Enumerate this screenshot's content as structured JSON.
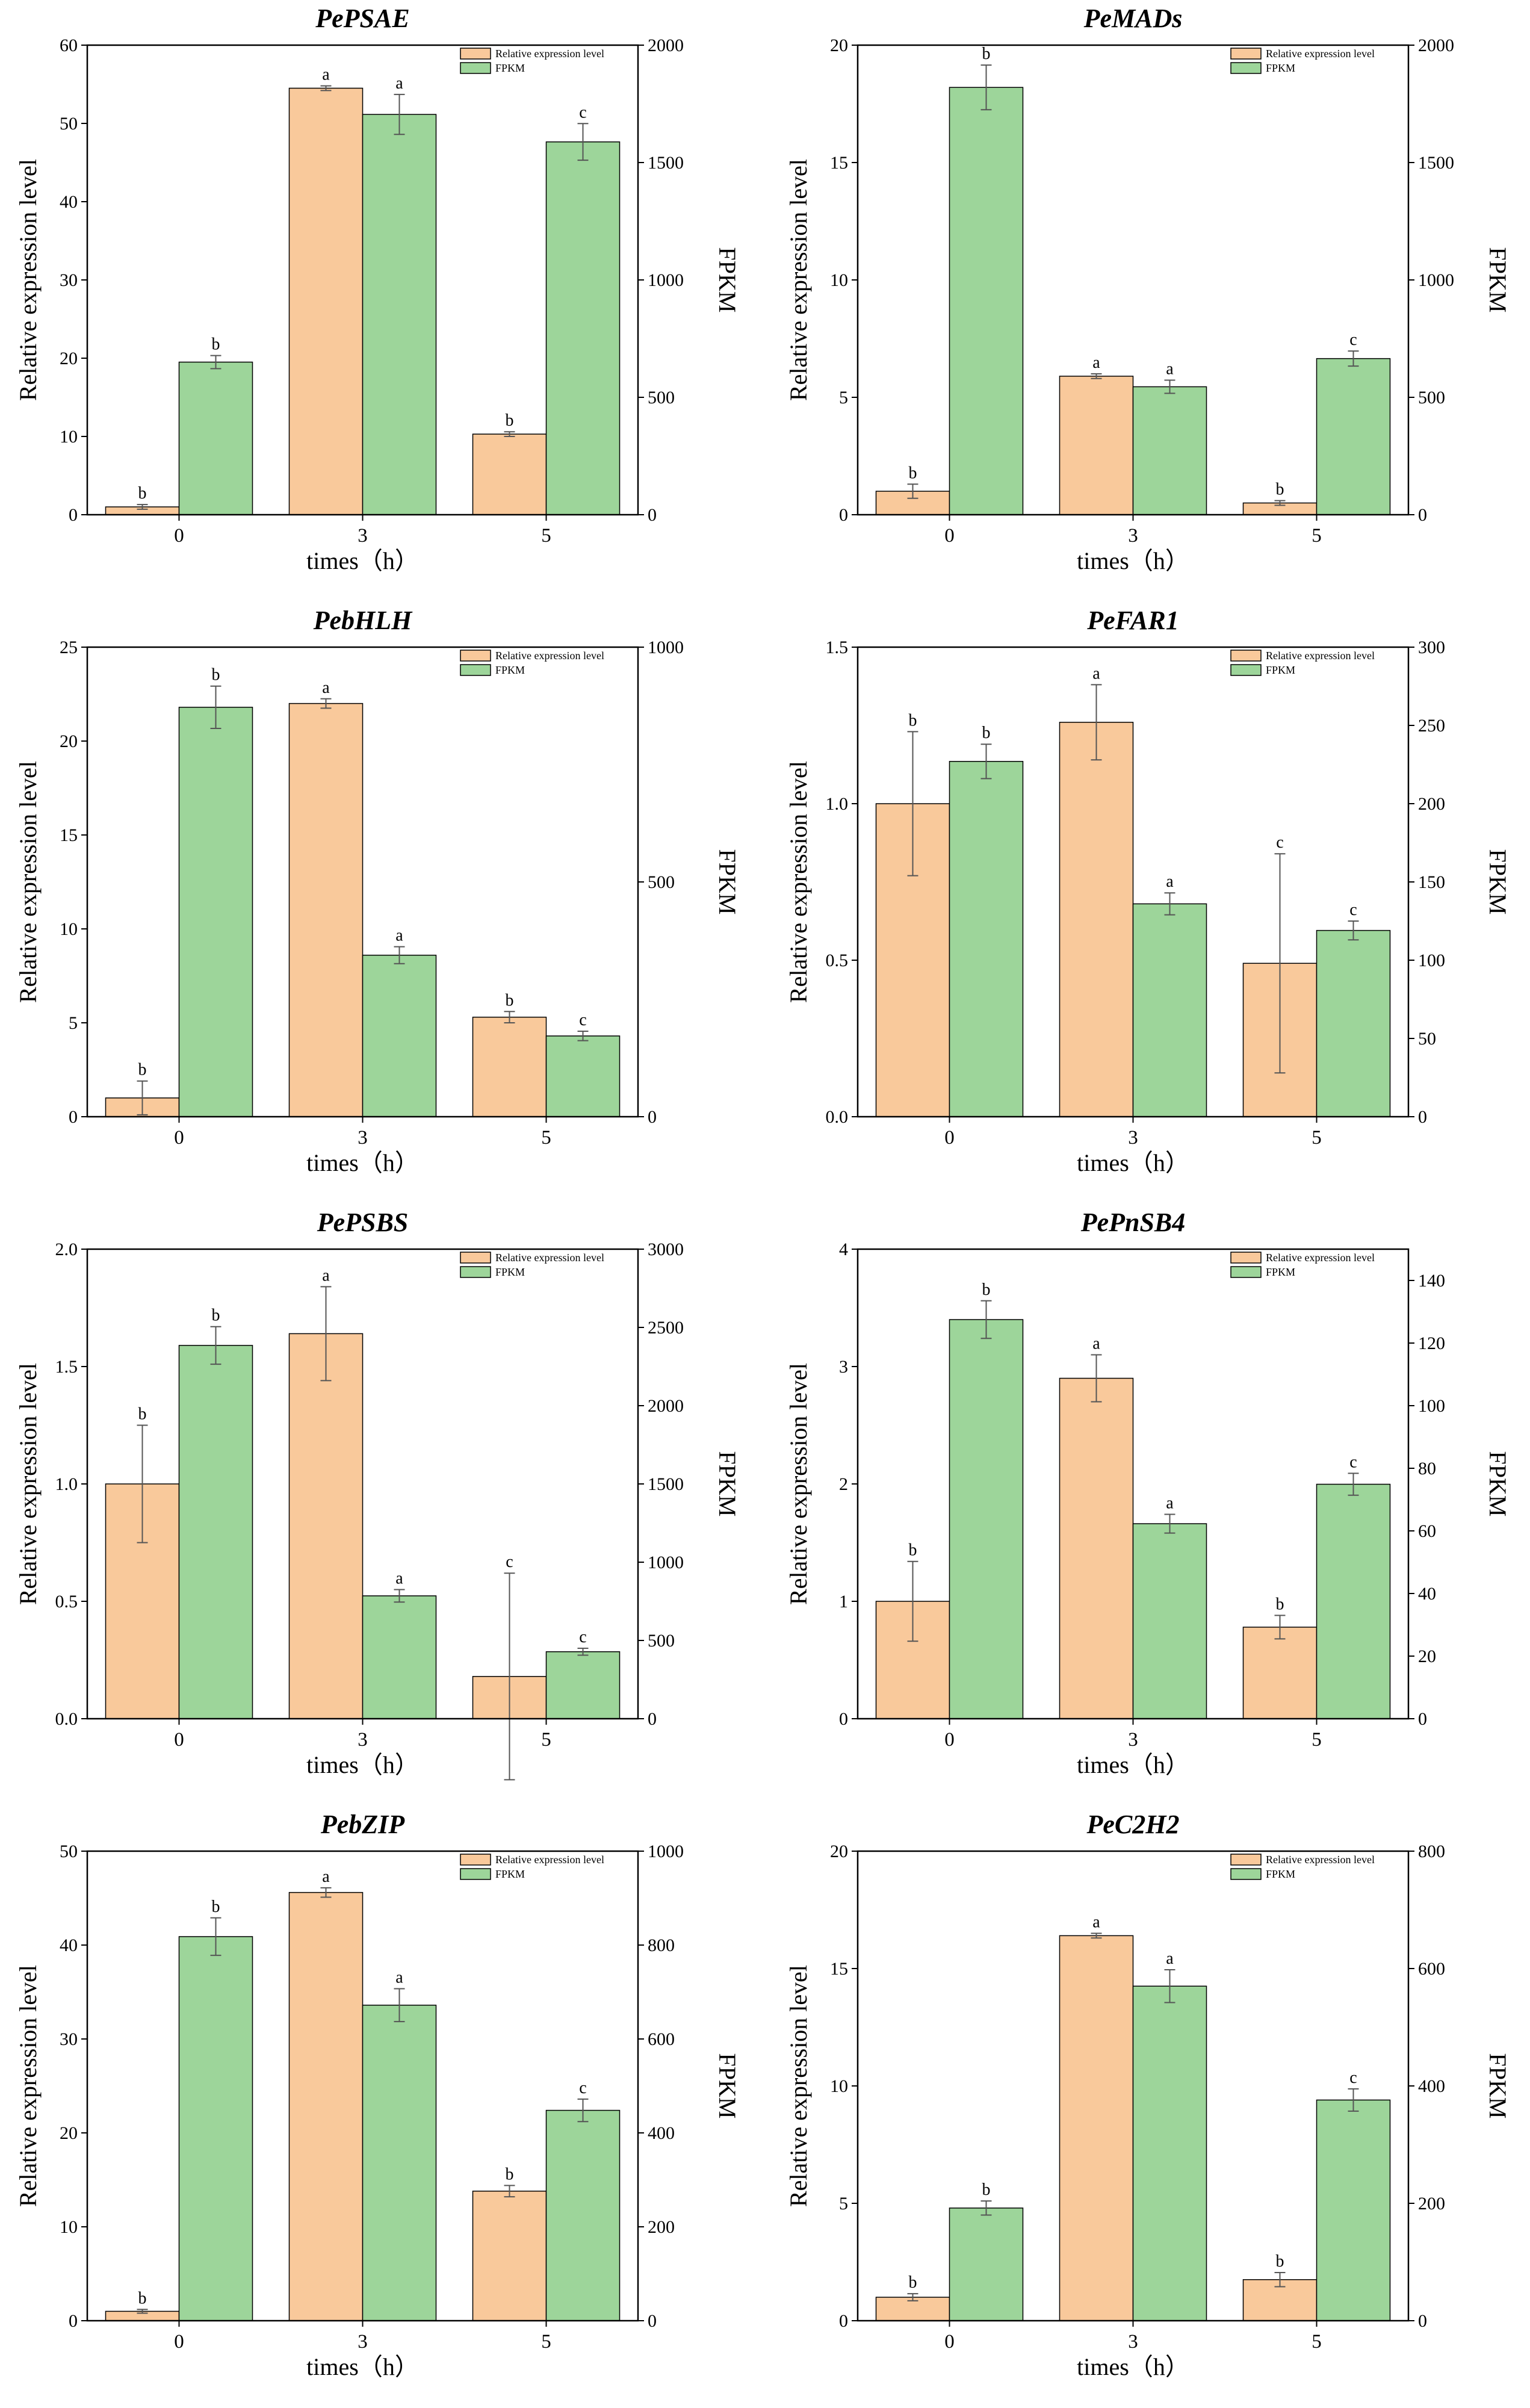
{
  "colors": {
    "relative": "#f9c99b",
    "fpkm": "#9dd59a",
    "stroke": "#000000",
    "error": "#555555"
  },
  "common": {
    "legend_relative": "Relative expression level",
    "legend_fpkm": "FPKM",
    "ylabel_left": "Relative expression level",
    "ylabel_right": "FPKM",
    "xlabel": "times（h）"
  },
  "chart_data": [
    {
      "type": "bar",
      "title": "PePSAE",
      "categories": [
        "0",
        "3",
        "5"
      ],
      "ylim_left": [
        0,
        60
      ],
      "yticks_left": [
        "0",
        "10",
        "20",
        "30",
        "40",
        "50",
        "60"
      ],
      "ylim_right": [
        0,
        2000
      ],
      "yticks_right": [
        "0",
        "500",
        "1000",
        "1500",
        "2000"
      ],
      "series": [
        {
          "name": "Relative expression level",
          "axis": "left",
          "values": [
            1.0,
            54.5,
            10.3
          ],
          "errors": [
            0.3,
            0.3,
            0.3
          ],
          "letters": [
            "b",
            "a",
            "b"
          ]
        },
        {
          "name": "FPKM",
          "axis": "right",
          "values": [
            650,
            1705,
            1588
          ],
          "errors": [
            28,
            85,
            78
          ],
          "letters": [
            "b",
            "a",
            "c"
          ]
        }
      ]
    },
    {
      "type": "bar",
      "title": "PeMADs",
      "categories": [
        "0",
        "3",
        "5"
      ],
      "ylim_left": [
        0,
        20
      ],
      "yticks_left": [
        "0",
        "5",
        "10",
        "15",
        "20"
      ],
      "ylim_right": [
        0,
        2000
      ],
      "yticks_right": [
        "0",
        "500",
        "1000",
        "1500",
        "2000"
      ],
      "series": [
        {
          "name": "Relative expression level",
          "axis": "left",
          "values": [
            1.0,
            5.9,
            0.5
          ],
          "errors": [
            0.3,
            0.1,
            0.1
          ],
          "letters": [
            "b",
            "a",
            "b"
          ]
        },
        {
          "name": "FPKM",
          "axis": "right",
          "values": [
            1820,
            545,
            665
          ],
          "errors": [
            95,
            28,
            32
          ],
          "letters": [
            "b",
            "a",
            "c"
          ]
        }
      ]
    },
    {
      "type": "bar",
      "title": "PebHLH",
      "categories": [
        "0",
        "3",
        "5"
      ],
      "ylim_left": [
        0,
        25
      ],
      "yticks_left": [
        "0",
        "5",
        "10",
        "15",
        "20",
        "25"
      ],
      "ylim_right": [
        0,
        1000
      ],
      "yticks_right": [
        "0",
        "500",
        "1000"
      ],
      "series": [
        {
          "name": "Relative expression level",
          "axis": "left",
          "values": [
            1.0,
            22.0,
            5.3
          ],
          "errors": [
            0.9,
            0.25,
            0.3
          ],
          "letters": [
            "b",
            "a",
            "b"
          ]
        },
        {
          "name": "FPKM",
          "axis": "right",
          "values": [
            872,
            344,
            172
          ],
          "errors": [
            45,
            18,
            10
          ],
          "letters": [
            "b",
            "a",
            "c"
          ]
        }
      ]
    },
    {
      "type": "bar",
      "title": "PeFAR1",
      "categories": [
        "0",
        "3",
        "5"
      ],
      "ylim_left": [
        0,
        1.5
      ],
      "yticks_left": [
        "0.0",
        "0.5",
        "1.0",
        "1.5"
      ],
      "ylim_right": [
        0,
        300
      ],
      "yticks_right": [
        "0",
        "50",
        "100",
        "150",
        "200",
        "250",
        "300"
      ],
      "series": [
        {
          "name": "Relative expression level",
          "axis": "left",
          "values": [
            1.0,
            1.26,
            0.49
          ],
          "errors": [
            0.23,
            0.12,
            0.35
          ],
          "letters": [
            "b",
            "a",
            "c"
          ]
        },
        {
          "name": "FPKM",
          "axis": "right",
          "values": [
            227,
            136,
            119
          ],
          "errors": [
            11,
            7,
            6
          ],
          "letters": [
            "b",
            "a",
            "c"
          ]
        }
      ]
    },
    {
      "type": "bar",
      "title": "PePSBS",
      "categories": [
        "0",
        "3",
        "5"
      ],
      "ylim_left": [
        0,
        2.0
      ],
      "yticks_left": [
        "0.0",
        "0.5",
        "1.0",
        "1.5",
        "2.0"
      ],
      "ylim_right": [
        0,
        3000
      ],
      "yticks_right": [
        "0",
        "500",
        "1000",
        "1500",
        "2000",
        "2500",
        "3000"
      ],
      "series": [
        {
          "name": "Relative expression level",
          "axis": "left",
          "values": [
            1.0,
            1.64,
            0.18
          ],
          "errors": [
            0.25,
            0.2,
            0.44
          ],
          "letters": [
            "b",
            "a",
            "c"
          ]
        },
        {
          "name": "FPKM",
          "axis": "right",
          "values": [
            2385,
            785,
            428
          ],
          "errors": [
            120,
            40,
            22
          ],
          "letters": [
            "b",
            "a",
            "c"
          ]
        }
      ]
    },
    {
      "type": "bar",
      "title": "PePnSB4",
      "categories": [
        "0",
        "3",
        "5"
      ],
      "ylim_left": [
        0,
        4
      ],
      "yticks_left": [
        "0",
        "1",
        "2",
        "3",
        "4"
      ],
      "ylim_right": [
        0,
        150
      ],
      "yticks_right": [
        "0",
        "20",
        "40",
        "60",
        "80",
        "100",
        "120",
        "140"
      ],
      "series": [
        {
          "name": "Relative expression level",
          "axis": "left",
          "values": [
            1.0,
            2.9,
            0.78
          ],
          "errors": [
            0.34,
            0.2,
            0.1
          ],
          "letters": [
            "b",
            "a",
            "b"
          ]
        },
        {
          "name": "FPKM",
          "axis": "right",
          "values": [
            127.5,
            62.3,
            74.9
          ],
          "errors": [
            6,
            3,
            3.5
          ],
          "letters": [
            "b",
            "a",
            "c"
          ]
        }
      ]
    },
    {
      "type": "bar",
      "title": "PebZIP",
      "categories": [
        "0",
        "3",
        "5"
      ],
      "ylim_left": [
        0,
        50
      ],
      "yticks_left": [
        "0",
        "10",
        "20",
        "30",
        "40",
        "50"
      ],
      "ylim_right": [
        0,
        1000
      ],
      "yticks_right": [
        "0",
        "200",
        "400",
        "600",
        "800",
        "1000"
      ],
      "series": [
        {
          "name": "Relative expression level",
          "axis": "left",
          "values": [
            1.0,
            45.6,
            13.8
          ],
          "errors": [
            0.2,
            0.5,
            0.6
          ],
          "letters": [
            "b",
            "a",
            "b"
          ]
        },
        {
          "name": "FPKM",
          "axis": "right",
          "values": [
            818,
            672,
            448
          ],
          "errors": [
            40,
            35,
            24
          ],
          "letters": [
            "b",
            "a",
            "c"
          ]
        }
      ]
    },
    {
      "type": "bar",
      "title": "PeC2H2",
      "categories": [
        "0",
        "3",
        "5"
      ],
      "ylim_left": [
        0,
        20
      ],
      "yticks_left": [
        "0",
        "5",
        "10",
        "15",
        "20"
      ],
      "ylim_right": [
        0,
        800
      ],
      "yticks_right": [
        "0",
        "200",
        "400",
        "600",
        "800"
      ],
      "series": [
        {
          "name": "Relative expression level",
          "axis": "left",
          "values": [
            1.0,
            16.4,
            1.75
          ],
          "errors": [
            0.15,
            0.1,
            0.3
          ],
          "letters": [
            "b",
            "a",
            "b"
          ]
        },
        {
          "name": "FPKM",
          "axis": "right",
          "values": [
            192,
            570,
            376
          ],
          "errors": [
            12,
            28,
            19
          ],
          "letters": [
            "b",
            "a",
            "c"
          ]
        }
      ]
    }
  ]
}
